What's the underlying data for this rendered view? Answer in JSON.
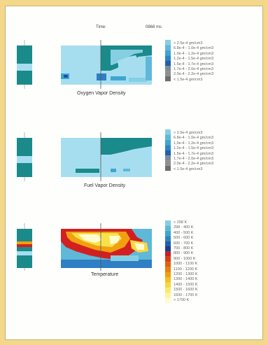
{
  "header": {
    "time_label": "Time:",
    "time_value": "0868 ms"
  },
  "panels": [
    {
      "id": "oxygen",
      "caption": "Oxygen Vapor Density",
      "legend_colors": [
        "#86cfe2",
        "#5fb8d8",
        "#3ea6cf",
        "#2a86c2",
        "#2060b0",
        "#7a8c99",
        "#8f8f8f",
        "#6e6e6e"
      ],
      "legend_labels": [
        "> 2.5e-4 gm/cm3",
        "6.8e-4 - 1.0e-4 gm/cm3",
        "1.0e-4 - 1.2e-4 gm/cm3",
        "1.2e-4 - 1.5e-4 gm/cm3",
        "1.5e-4 - 1.7e-4 gm/cm3",
        "1.7e-4 - 2.0e-4 gm/cm3",
        "2.0e-4 - 2.2e-4 gm/cm3",
        "< 1.5e-4 gm/cm3"
      ]
    },
    {
      "id": "fuel",
      "caption": "Fuel Vapor Density",
      "legend_colors": [
        "#86cfe2",
        "#5fb8d8",
        "#3ea6cf",
        "#2a86c2",
        "#2060b0",
        "#7a8c99",
        "#8f8f8f",
        "#6e6e6e"
      ],
      "legend_labels": [
        "> 2.5e-4 gm/cm3",
        "6.8e-4 - 1.0e-4 gm/cm3",
        "1.0e-4 - 1.2e-4 gm/cm3",
        "1.2e-4 - 1.5e-4 gm/cm3",
        "1.5e-4 - 1.7e-4 gm/cm3",
        "1.7e-4 - 2.0e-4 gm/cm3",
        "2.0e-4 - 2.2e-4 gm/cm3",
        "< 1.5e-4 gm/cm3"
      ]
    },
    {
      "id": "temperature",
      "caption": "Temperature",
      "legend_colors": [
        "#86cfe2",
        "#5fb8d8",
        "#3ea6cf",
        "#2a86c2",
        "#2060b0",
        "#1a3f8f",
        "#c82020",
        "#d84010",
        "#e06010",
        "#e88010",
        "#f0a010",
        "#f5c020",
        "#f8d840",
        "#fbe870",
        "#fdf4a0",
        "#fffbd0"
      ],
      "legend_labels": [
        "< 298 K",
        "298 - 400 K",
        "400 - 500 K",
        "500 - 600 K",
        "600 - 700 K",
        "700 - 800 K",
        "800 - 900 K",
        "900 - 1000 K",
        "1000 - 1100 K",
        "1100 - 1200 K",
        "1200 - 1300 K",
        "1300 - 1400 K",
        "1400 - 1500 K",
        "1500 - 1600 K",
        "1600 - 1700 K",
        "> 1700 K"
      ]
    }
  ],
  "colors": {
    "teal": "#1b8a8a",
    "light_blue": "#a6def0",
    "mid_blue": "#2f7fc4",
    "dark_blue": "#1f4ea8",
    "red": "#d22020",
    "yellow": "#f6e24a",
    "white": "#ffffff",
    "grey": "#7a7a7a"
  }
}
